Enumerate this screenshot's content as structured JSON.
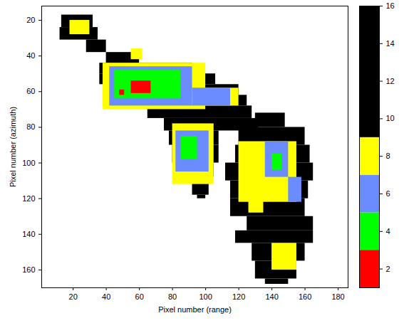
{
  "chart_data": {
    "type": "heatmap",
    "xlabel": "Pixel number (range)",
    "ylabel": "Pixel number (azimuth)",
    "xlim": [
      1,
      186
    ],
    "xticks": [
      20,
      40,
      60,
      80,
      100,
      120,
      140,
      160,
      180
    ],
    "ylim": [
      12,
      170
    ],
    "yticks": [
      20,
      40,
      60,
      80,
      100,
      120,
      140,
      160
    ],
    "grid": false,
    "cells": [
      {
        "x1": 13,
        "x2": 32,
        "y1": 17,
        "y2": 24,
        "value": 12
      },
      {
        "x1": 12,
        "x2": 35,
        "y1": 24,
        "y2": 31,
        "value": 12
      },
      {
        "x1": 28,
        "x2": 40,
        "y1": 31,
        "y2": 38,
        "value": 12
      },
      {
        "x1": 40,
        "x2": 60,
        "y1": 38,
        "y2": 44,
        "value": 12
      },
      {
        "x1": 36,
        "x2": 92,
        "y1": 44,
        "y2": 50,
        "value": 12
      },
      {
        "x1": 36,
        "x2": 106,
        "y1": 50,
        "y2": 56,
        "value": 12
      },
      {
        "x1": 38,
        "x2": 120,
        "y1": 56,
        "y2": 62,
        "value": 12
      },
      {
        "x1": 45,
        "x2": 125,
        "y1": 62,
        "y2": 68,
        "value": 12
      },
      {
        "x1": 65,
        "x2": 128,
        "y1": 68,
        "y2": 75,
        "value": 12
      },
      {
        "x1": 75,
        "x2": 132,
        "y1": 75,
        "y2": 82,
        "value": 12
      },
      {
        "x1": 78,
        "x2": 108,
        "y1": 82,
        "y2": 90,
        "value": 12
      },
      {
        "x1": 80,
        "x2": 108,
        "y1": 90,
        "y2": 100,
        "value": 12
      },
      {
        "x1": 85,
        "x2": 105,
        "y1": 100,
        "y2": 108,
        "value": 12
      },
      {
        "x1": 92,
        "x2": 102,
        "y1": 108,
        "y2": 118,
        "value": 12
      },
      {
        "x1": 95,
        "x2": 100,
        "y1": 118,
        "y2": 120,
        "value": 12
      },
      {
        "x1": 130,
        "x2": 148,
        "y1": 72,
        "y2": 80,
        "value": 12
      },
      {
        "x1": 120,
        "x2": 160,
        "y1": 80,
        "y2": 90,
        "value": 12
      },
      {
        "x1": 118,
        "x2": 163,
        "y1": 90,
        "y2": 100,
        "value": 12
      },
      {
        "x1": 112,
        "x2": 165,
        "y1": 100,
        "y2": 110,
        "value": 12
      },
      {
        "x1": 115,
        "x2": 162,
        "y1": 110,
        "y2": 120,
        "value": 12
      },
      {
        "x1": 115,
        "x2": 160,
        "y1": 120,
        "y2": 130,
        "value": 12
      },
      {
        "x1": 125,
        "x2": 165,
        "y1": 130,
        "y2": 138,
        "value": 12
      },
      {
        "x1": 118,
        "x2": 165,
        "y1": 138,
        "y2": 145,
        "value": 12
      },
      {
        "x1": 128,
        "x2": 160,
        "y1": 145,
        "y2": 155,
        "value": 12
      },
      {
        "x1": 130,
        "x2": 155,
        "y1": 155,
        "y2": 165,
        "value": 12
      },
      {
        "x1": 136,
        "x2": 150,
        "y1": 165,
        "y2": 168,
        "value": 12
      },
      {
        "x1": 18,
        "x2": 30,
        "y1": 20,
        "y2": 28,
        "value": 8
      },
      {
        "x1": 55,
        "x2": 62,
        "y1": 36,
        "y2": 42,
        "value": 8
      },
      {
        "x1": 38,
        "x2": 100,
        "y1": 44,
        "y2": 70,
        "value": 8
      },
      {
        "x1": 100,
        "x2": 120,
        "y1": 58,
        "y2": 68,
        "value": 8
      },
      {
        "x1": 80,
        "x2": 105,
        "y1": 78,
        "y2": 112,
        "value": 8
      },
      {
        "x1": 120,
        "x2": 155,
        "y1": 88,
        "y2": 122,
        "value": 8
      },
      {
        "x1": 126,
        "x2": 135,
        "y1": 110,
        "y2": 128,
        "value": 8
      },
      {
        "x1": 140,
        "x2": 155,
        "y1": 145,
        "y2": 160,
        "value": 8
      },
      {
        "x1": 42,
        "x2": 92,
        "y1": 46,
        "y2": 68,
        "value": 6
      },
      {
        "x1": 92,
        "x2": 115,
        "y1": 58,
        "y2": 68,
        "value": 6
      },
      {
        "x1": 82,
        "x2": 102,
        "y1": 82,
        "y2": 105,
        "value": 6
      },
      {
        "x1": 136,
        "x2": 150,
        "y1": 88,
        "y2": 108,
        "value": 6
      },
      {
        "x1": 150,
        "x2": 158,
        "y1": 108,
        "y2": 122,
        "value": 6
      },
      {
        "x1": 45,
        "x2": 85,
        "y1": 48,
        "y2": 64,
        "value": 4
      },
      {
        "x1": 85,
        "x2": 95,
        "y1": 85,
        "y2": 98,
        "value": 4
      },
      {
        "x1": 140,
        "x2": 146,
        "y1": 95,
        "y2": 104,
        "value": 4
      },
      {
        "x1": 55,
        "x2": 67,
        "y1": 54,
        "y2": 61,
        "value": 2
      },
      {
        "x1": 48,
        "x2": 51,
        "y1": 59,
        "y2": 62,
        "value": 2
      }
    ],
    "colorbar": {
      "range": [
        1,
        16
      ],
      "ticks": [
        2,
        4,
        6,
        8,
        10,
        12,
        14,
        16
      ],
      "thresholds": [
        3,
        5,
        7,
        9
      ],
      "colors": [
        "#ff0000",
        "#00ff00",
        "#6b8cff",
        "#ffff00",
        "#000000"
      ]
    }
  }
}
